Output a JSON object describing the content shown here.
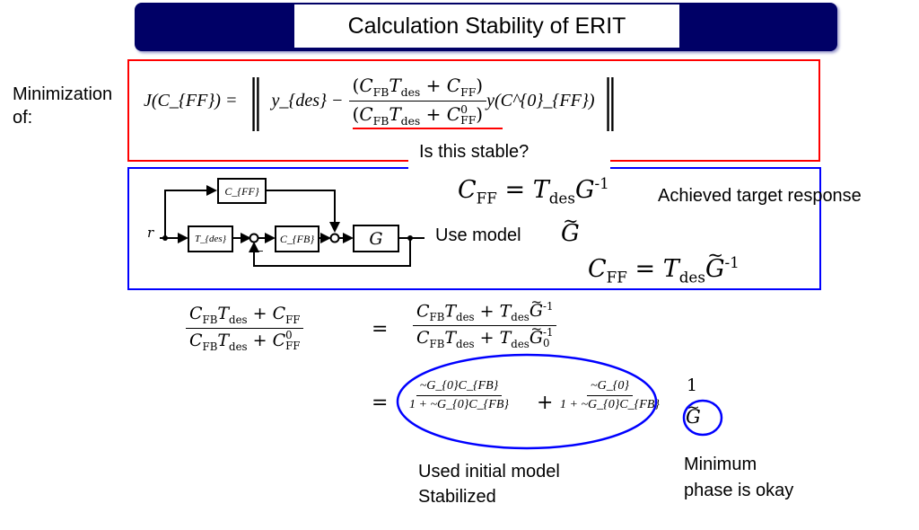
{
  "title": "Calculation Stability of ERIT",
  "colors": {
    "title_bar": "#000066",
    "red_box": "#ff0000",
    "blue_box": "#0000ff"
  },
  "objective": {
    "label_line1": "Minimization",
    "label_line2": "of:",
    "lhs": "J(C_{FF}) =",
    "ydes": "y_{des} −",
    "num": "(C_{FB}T_{des} + C_{FF})",
    "den": "(C_{FB}T_{des} + C^{0}_{FF})",
    "tail": "y(C^{0}_{FF})",
    "question": "Is this stable?"
  },
  "diagram": {
    "input": "r",
    "cff": "C_{FF}",
    "tdes": "T_{des}",
    "cfb": "C_{FB}",
    "plant": "G",
    "minus": "−"
  },
  "ideal": {
    "eq": "C_{FF} = T_{des}G^{-1}",
    "note": "Achieved target response",
    "use_model": "Use model",
    "model": "~G",
    "eq_model": "C_{FF} = T_{des}~G^{-1}"
  },
  "derivation": {
    "lhs_num": "C_{FB}T_{des} + C_{FF}",
    "lhs_den": "C_{FB}T_{des} + C^{0}_{FF}",
    "eq1": "=",
    "rhs_num": "C_{FB}T_{des} + T_{des}~G^{-1}",
    "rhs_den": "C_{FB}T_{des} + T_{des}~G^{-1}_{0}",
    "eq2": "=",
    "t1_num": "~G_{0}C_{FB}",
    "t1_den": "1 + ~G_{0}C_{FB}",
    "plus": "+",
    "t2_num": "~G_{0}",
    "t2_den": "1 + ~G_{0}C_{FB}",
    "t3_num": "1",
    "t3_den": "~G"
  },
  "annotations": {
    "stabilized_line1": "Used initial model",
    "stabilized_line2": "Stabilized",
    "minphase_line1": "Minimum",
    "minphase_line2": "phase is okay"
  }
}
